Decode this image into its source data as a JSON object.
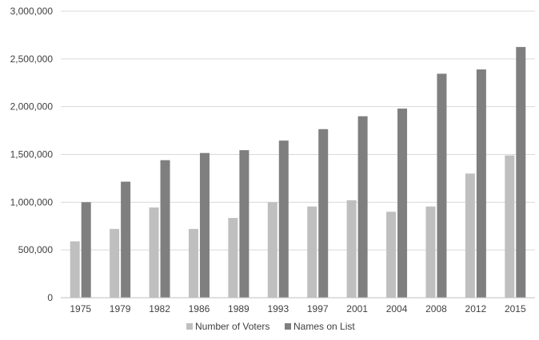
{
  "chart_data": {
    "type": "bar",
    "categories": [
      "1975",
      "1979",
      "1982",
      "1986",
      "1989",
      "1993",
      "1997",
      "2001",
      "2004",
      "2008",
      "2012",
      "2015"
    ],
    "series": [
      {
        "name": "Number of Voters",
        "color": "#bfbfbf",
        "values": [
          590000,
          720000,
          945000,
          720000,
          835000,
          1000000,
          955000,
          1020000,
          900000,
          955000,
          1300000,
          1490000
        ]
      },
      {
        "name": "Names on List",
        "color": "#7f7f7f",
        "values": [
          1000000,
          1215000,
          1440000,
          1515000,
          1545000,
          1645000,
          1765000,
          1900000,
          1980000,
          2345000,
          2390000,
          2625000
        ]
      }
    ],
    "ylim": [
      0,
      3000000
    ],
    "yticks": [
      0,
      500000,
      1000000,
      1500000,
      2000000,
      2500000,
      3000000
    ],
    "ytick_labels": [
      "0",
      "500,000",
      "1,000,000",
      "1,500,000",
      "2,000,000",
      "2,500,000",
      "3,000,000"
    ],
    "grid": true,
    "legend_position": "bottom-center",
    "gridline_color": "#d9d9d9",
    "axis_color": "#bfbfbf"
  }
}
